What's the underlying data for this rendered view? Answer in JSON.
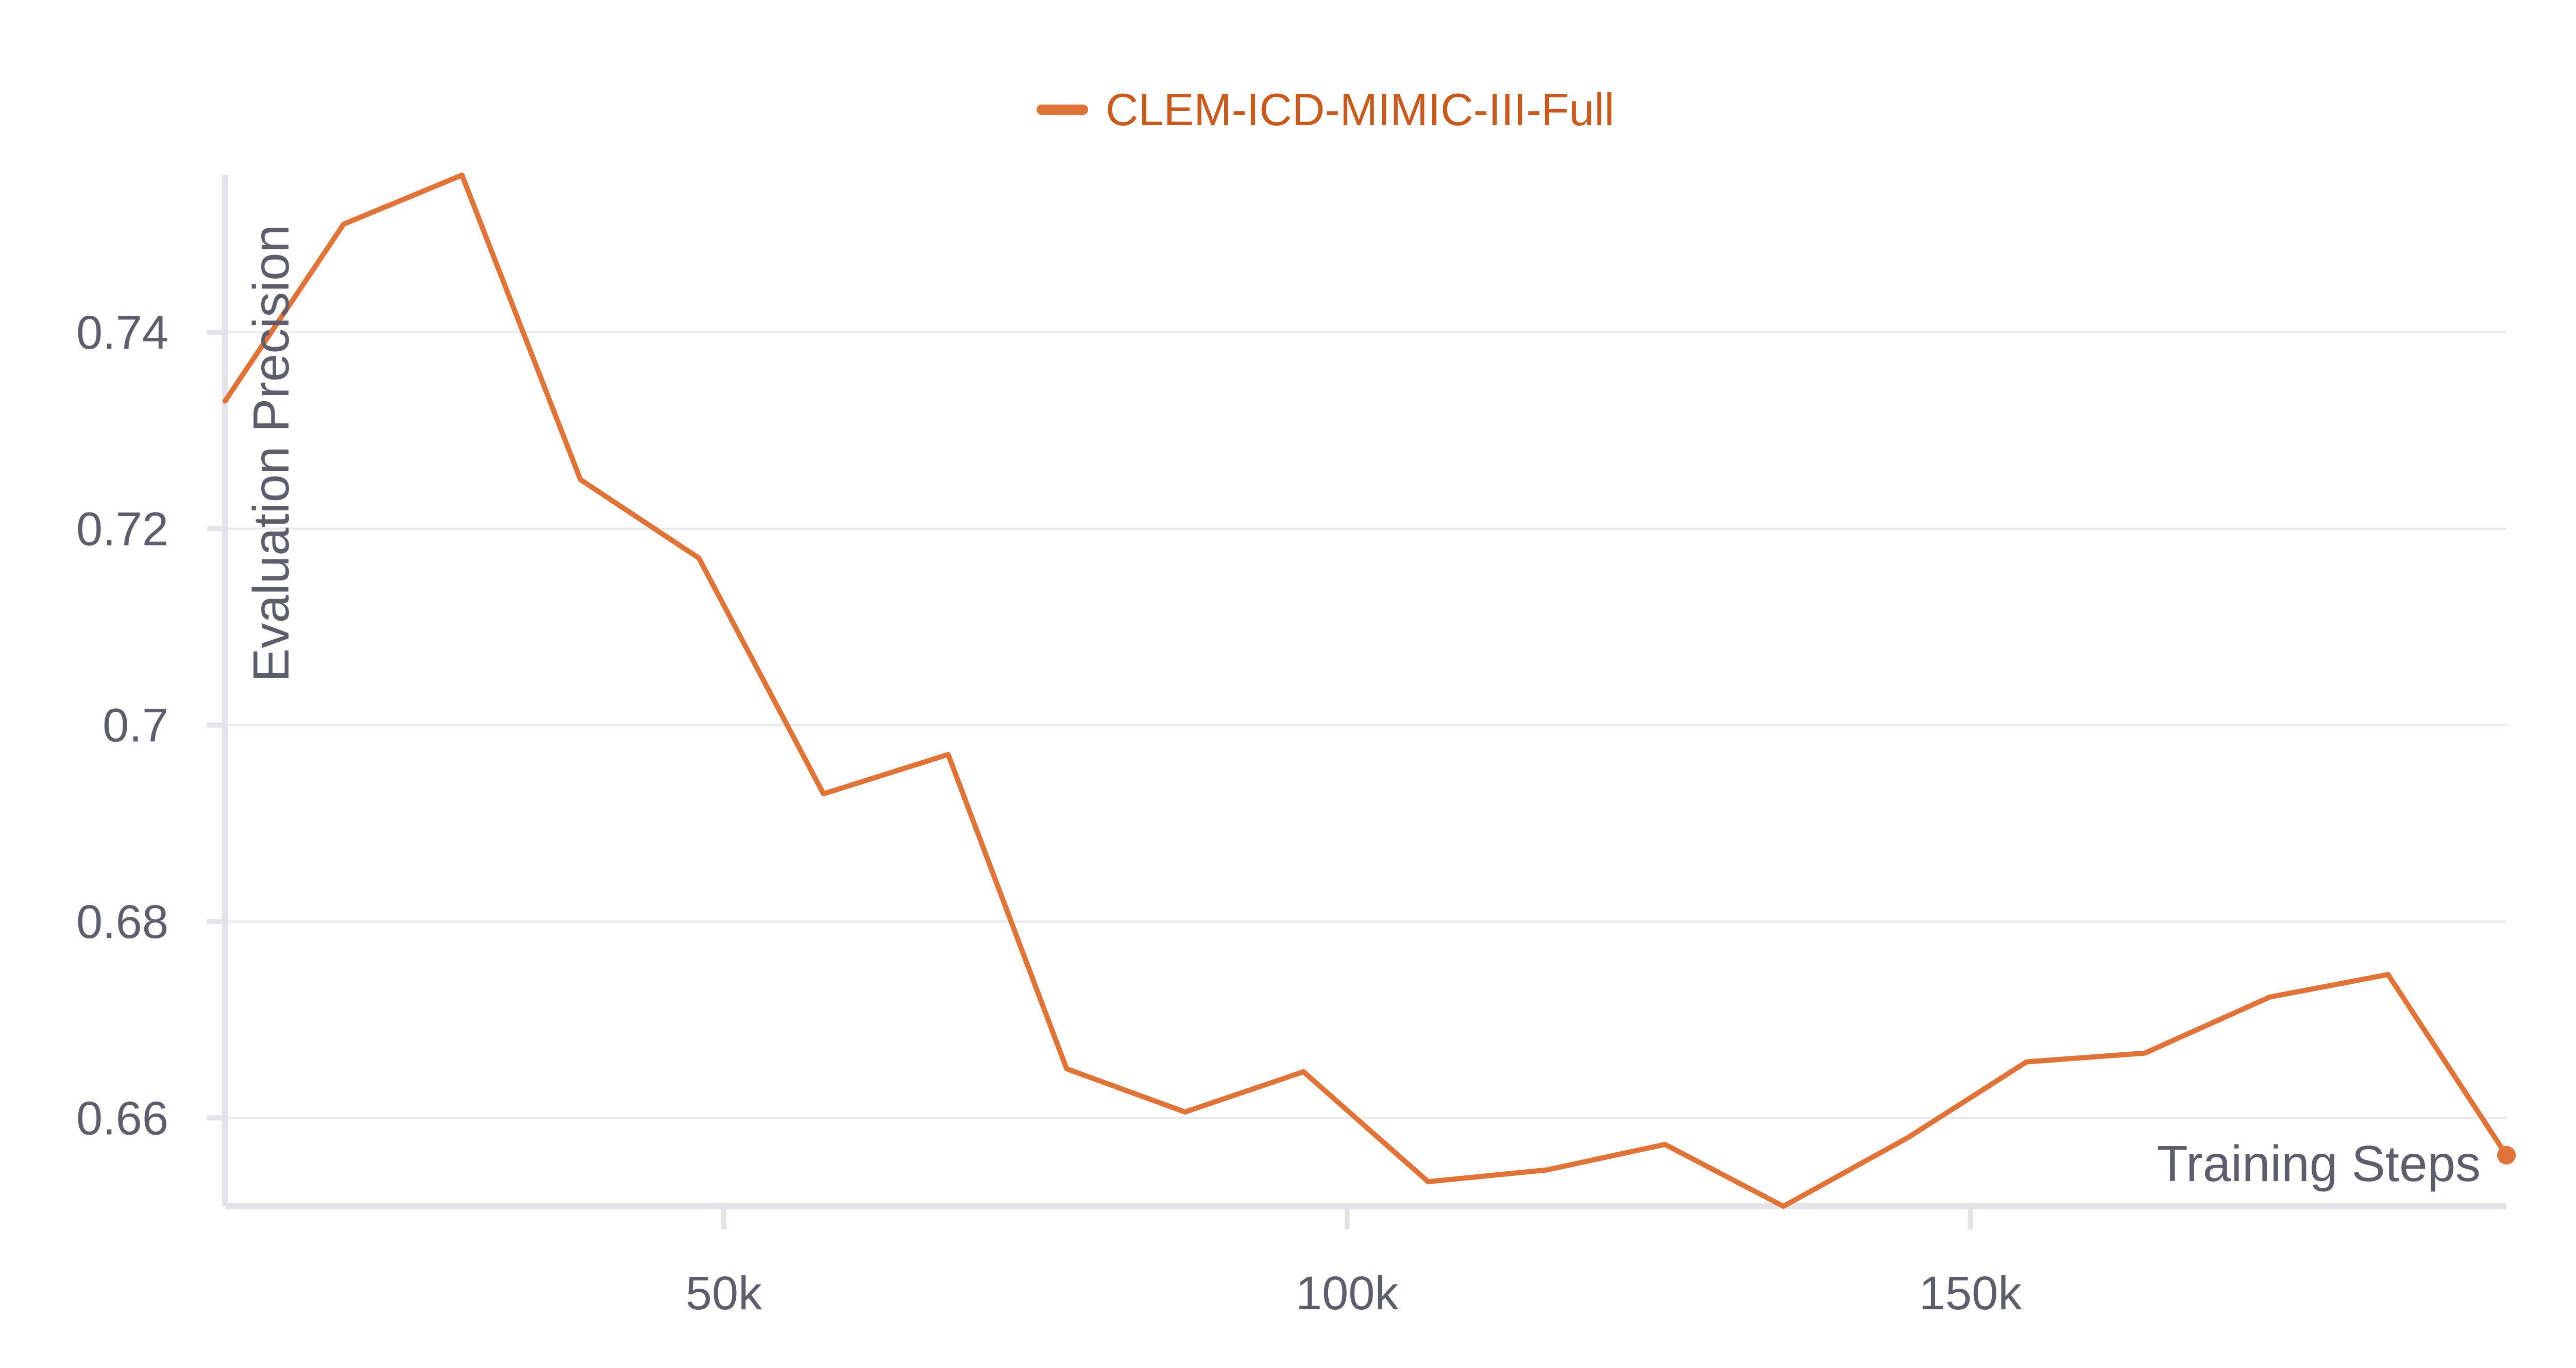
{
  "chart_data": {
    "type": "line",
    "title": "",
    "xlabel": "Training Steps",
    "ylabel": "Evaluation Precision",
    "x_ticks": [
      {
        "value": 50000,
        "label": "50k"
      },
      {
        "value": 100000,
        "label": "100k"
      },
      {
        "value": 150000,
        "label": "150k"
      }
    ],
    "y_ticks": [
      {
        "value": 0.66,
        "label": "0.66"
      },
      {
        "value": 0.68,
        "label": "0.68"
      },
      {
        "value": 0.7,
        "label": "0.7"
      },
      {
        "value": 0.72,
        "label": "0.72"
      },
      {
        "value": 0.74,
        "label": "0.74"
      }
    ],
    "xlim": [
      10000,
      193000
    ],
    "ylim": [
      0.651,
      0.756
    ],
    "grid": true,
    "legend_position": "top-center",
    "series": [
      {
        "name": "CLEM-ICD-MIMIC-III-Full",
        "color": "#e07438",
        "x": [
          10000,
          19500,
          29000,
          38500,
          48000,
          58000,
          68000,
          77500,
          87000,
          96500,
          106500,
          116000,
          125500,
          135000,
          145000,
          154500,
          164000,
          174000,
          183500,
          193000
        ],
        "y": [
          0.733,
          0.751,
          0.756,
          0.725,
          0.717,
          0.693,
          0.697,
          0.665,
          0.6606,
          0.6647,
          0.6535,
          0.6547,
          0.6573,
          0.651,
          0.658,
          0.6657,
          0.6666,
          0.6723,
          0.6746,
          0.6562
        ]
      }
    ]
  }
}
